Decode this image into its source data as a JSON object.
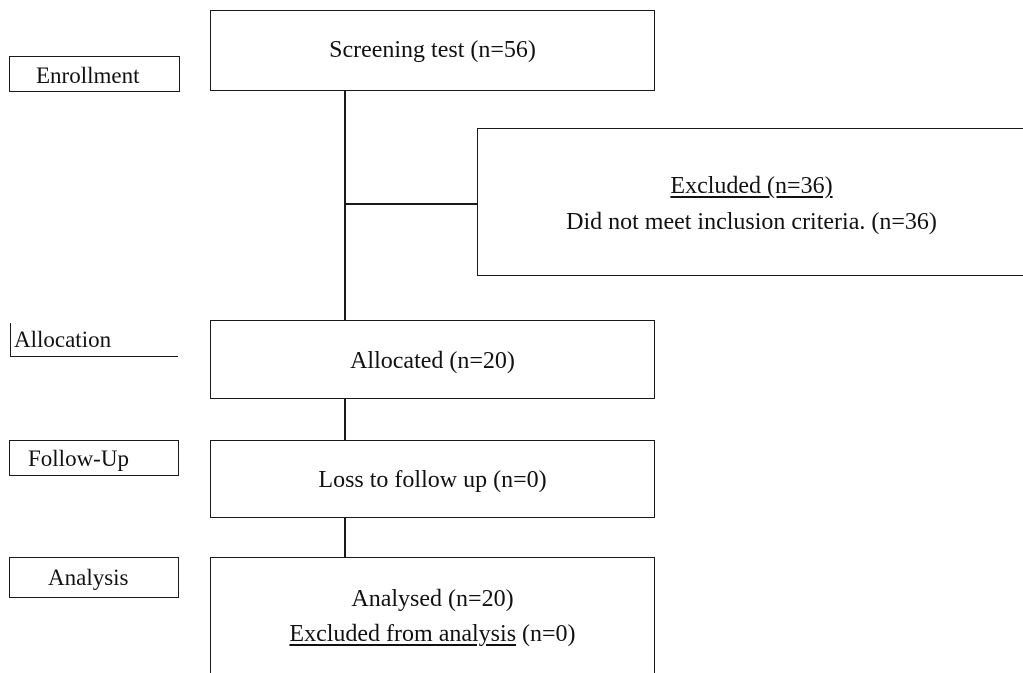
{
  "stages": {
    "enrollment": "Enrollment",
    "allocation": "Allocation",
    "follow_up": "Follow-Up",
    "analysis": "Analysis"
  },
  "boxes": {
    "screening": "Screening test (n=56)",
    "excluded_title": "Excluded (n=36)",
    "excluded_reason": "Did not meet inclusion criteria. (n=36)",
    "allocated": "Allocated (n=20)",
    "loss_follow_up": "Loss to follow up (n=0)",
    "analysed": "Analysed (n=20)",
    "excluded_analysis_label": "Excluded from analysis",
    "excluded_analysis_count": "(n=0)"
  }
}
